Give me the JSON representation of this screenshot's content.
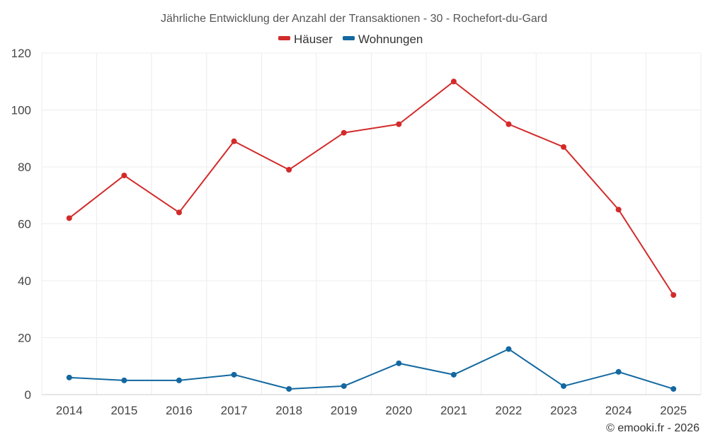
{
  "chart_data": {
    "type": "line",
    "title": "Jährliche Entwicklung der Anzahl der Transaktionen - 30 - Rochefort-du-Gard",
    "categories": [
      "2014",
      "2015",
      "2016",
      "2017",
      "2018",
      "2019",
      "2020",
      "2021",
      "2022",
      "2023",
      "2024",
      "2025"
    ],
    "series": [
      {
        "name": "Häuser",
        "color": "#d32a2a",
        "values": [
          62,
          77,
          64,
          89,
          79,
          92,
          95,
          110,
          95,
          87,
          65,
          35
        ]
      },
      {
        "name": "Wohnungen",
        "color": "#1368a0",
        "values": [
          6,
          5,
          5,
          7,
          2,
          3,
          11,
          7,
          16,
          3,
          8,
          2
        ]
      }
    ],
    "ylim": [
      0,
      120
    ],
    "yticks": [
      0,
      20,
      40,
      60,
      80,
      100,
      120
    ],
    "xlabel": "",
    "ylabel": "",
    "grid": true,
    "legend_position": "top-center"
  },
  "credit": "© emooki.fr - 2026"
}
